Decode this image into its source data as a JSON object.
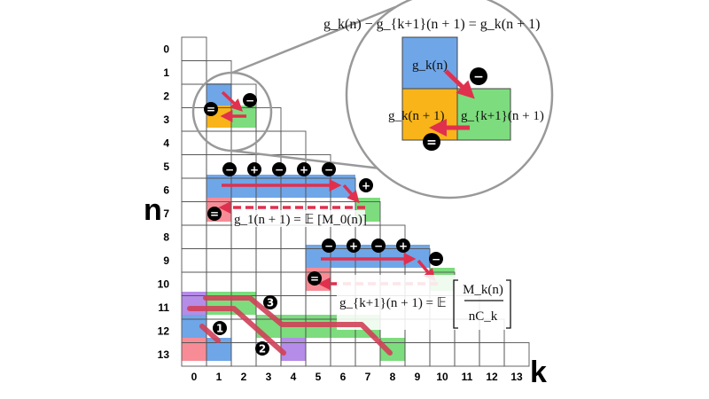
{
  "axes": {
    "n_label": "n",
    "k_label": "k",
    "rows": [
      "0",
      "1",
      "2",
      "3",
      "4",
      "5",
      "6",
      "7",
      "8",
      "9",
      "10",
      "11",
      "12",
      "13"
    ],
    "cols": [
      "0",
      "1",
      "2",
      "3",
      "4",
      "5",
      "6",
      "7",
      "8",
      "9",
      "10",
      "11",
      "12",
      "13"
    ]
  },
  "zoom": {
    "equation": "g_k(n) − g_{k+1}(n + 1) = g_k(n + 1)",
    "cell_top": "g_k(n)",
    "cell_left": "g_k(n + 1)",
    "cell_right": "g_{k+1}(n + 1)",
    "sign_minus": "−",
    "sign_equal": "="
  },
  "equations": {
    "eq1": "g_1(n + 1) = 𝔼 [M_0(n)]",
    "eq2_lhs": "g_{k+1}(n + 1) = 𝔼",
    "eq2_num": "M_k(n)",
    "eq2_den": "nC_k"
  },
  "signs": {
    "row6": [
      "−",
      "+",
      "−",
      "+",
      "−"
    ],
    "row6_end": "+",
    "row9": [
      "−",
      "+",
      "−",
      "+"
    ],
    "row9_end": "−",
    "small_top": "−",
    "small_left": "=",
    "left7": "=",
    "left10": "="
  },
  "steps": [
    "1",
    "2",
    "3"
  ],
  "colors": {
    "blue": "#6fa6e8",
    "green": "#7ddc7d",
    "orange": "#f8b418",
    "pink": "#f78c96",
    "purple": "#b58ce8",
    "arrow": "#e0304e",
    "grid": "#555555"
  }
}
